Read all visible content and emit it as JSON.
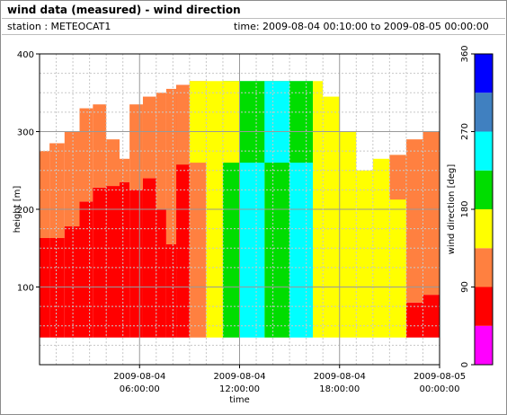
{
  "header": {
    "title": "wind data (measured) - wind direction",
    "station": "station : METEOCAT1",
    "time_range": "time: 2009-08-04 00:10:00 to 2009-08-05 00:00:00"
  },
  "chart_data": {
    "type": "heatmap",
    "title": "wind data (measured) - wind direction",
    "xlabel": "time",
    "ylabel": "height [m]",
    "colorbar_label": "wind direction [deg]",
    "xlim": [
      0,
      24
    ],
    "ylim": [
      0,
      400
    ],
    "x_ticks": [
      {
        "value": 6,
        "date": "2009-08-04",
        "time": "06:00:00"
      },
      {
        "value": 12,
        "date": "2009-08-04",
        "time": "12:00:00"
      },
      {
        "value": 18,
        "date": "2009-08-04",
        "time": "18:00:00"
      },
      {
        "value": 24,
        "date": "2009-08-05",
        "time": "00:00:00"
      }
    ],
    "y_ticks": [
      "100",
      "200",
      "300",
      "400"
    ],
    "colorbar": {
      "ticks": [
        "0",
        "90",
        "180",
        "270",
        "360"
      ],
      "bands": [
        {
          "from": 0,
          "to": 45,
          "color": "#ff00ff"
        },
        {
          "from": 45,
          "to": 90,
          "color": "#ff0000"
        },
        {
          "from": 90,
          "to": 135,
          "color": "#ff8040"
        },
        {
          "from": 135,
          "to": 180,
          "color": "#ffff00"
        },
        {
          "from": 180,
          "to": 225,
          "color": "#00dd00"
        },
        {
          "from": 225,
          "to": 270,
          "color": "#00ffff"
        },
        {
          "from": 270,
          "to": 315,
          "color": "#4080c0"
        },
        {
          "from": 315,
          "to": 360,
          "color": "#0000ff"
        }
      ]
    },
    "height_range_m": [
      35,
      365
    ],
    "data_bands": [
      {
        "t_start": 0.0,
        "t_end": 0.6,
        "top_m": 275,
        "low_m": 35,
        "low_top_m": 163,
        "low_class": "red",
        "upper_class": "orange"
      },
      {
        "t_start": 0.6,
        "t_end": 1.5,
        "top_m": 285,
        "low_m": 35,
        "low_top_m": 163,
        "low_class": "red",
        "upper_class": "orange"
      },
      {
        "t_start": 1.5,
        "t_end": 2.4,
        "top_m": 300,
        "low_m": 35,
        "low_top_m": 178,
        "low_class": "red",
        "upper_class": "orange"
      },
      {
        "t_start": 2.4,
        "t_end": 3.2,
        "top_m": 330,
        "low_m": 35,
        "low_top_m": 210,
        "low_class": "red",
        "upper_class": "orange"
      },
      {
        "t_start": 3.2,
        "t_end": 4.0,
        "top_m": 335,
        "low_m": 35,
        "low_top_m": 228,
        "low_class": "red",
        "upper_class": "orange"
      },
      {
        "t_start": 4.0,
        "t_end": 4.8,
        "top_m": 290,
        "low_m": 35,
        "low_top_m": 230,
        "low_class": "red",
        "upper_class": "orange"
      },
      {
        "t_start": 4.8,
        "t_end": 5.4,
        "top_m": 265,
        "low_m": 35,
        "low_top_m": 235,
        "low_class": "red",
        "upper_class": "orange"
      },
      {
        "t_start": 5.4,
        "t_end": 6.2,
        "top_m": 335,
        "low_m": 35,
        "low_top_m": 225,
        "low_class": "red",
        "upper_class": "orange"
      },
      {
        "t_start": 6.2,
        "t_end": 7.0,
        "top_m": 345,
        "low_m": 35,
        "low_top_m": 240,
        "low_class": "red",
        "upper_class": "orange"
      },
      {
        "t_start": 7.0,
        "t_end": 7.6,
        "top_m": 350,
        "low_m": 35,
        "low_top_m": 200,
        "low_class": "red",
        "upper_class": "orange"
      },
      {
        "t_start": 7.6,
        "t_end": 8.2,
        "top_m": 355,
        "low_m": 35,
        "low_top_m": 155,
        "low_class": "red",
        "upper_class": "orange"
      },
      {
        "t_start": 8.2,
        "t_end": 9.0,
        "top_m": 360,
        "low_m": 35,
        "low_top_m": 35,
        "low_class": "red",
        "upper_class": "orange"
      },
      {
        "t_start": 9.0,
        "t_end": 10.0,
        "top_m": 365,
        "low_m": 35,
        "low_top_m": 35,
        "low_class": "orange",
        "upper_class": "yellow"
      },
      {
        "t_start": 10.0,
        "t_end": 11.0,
        "top_m": 365,
        "low_m": 35,
        "low_top_m": 35,
        "low_class": "yellow",
        "upper_class": "yellow"
      },
      {
        "t_start": 11.0,
        "t_end": 12.0,
        "top_m": 365,
        "low_m": 35,
        "low_top_m": 35,
        "low_class": "green",
        "upper_class": "yellow"
      },
      {
        "t_start": 12.0,
        "t_end": 13.5,
        "top_m": 365,
        "low_m": 35,
        "low_top_m": 35,
        "low_class": "cyan",
        "upper_class": "green"
      },
      {
        "t_start": 13.5,
        "t_end": 15.0,
        "top_m": 365,
        "low_m": 35,
        "low_top_m": 35,
        "low_class": "green",
        "upper_class": "cyan"
      },
      {
        "t_start": 15.0,
        "t_end": 16.4,
        "top_m": 365,
        "low_m": 35,
        "low_top_m": 35,
        "low_class": "cyan",
        "upper_class": "green"
      },
      {
        "t_start": 16.4,
        "t_end": 17.0,
        "top_m": 365,
        "low_m": 35,
        "low_top_m": 35,
        "low_class": "yellow",
        "upper_class": "yellow"
      },
      {
        "t_start": 17.0,
        "t_end": 18.0,
        "top_m": 345,
        "low_m": 35,
        "low_top_m": 35,
        "low_class": "yellow",
        "upper_class": "yellow"
      },
      {
        "t_start": 18.0,
        "t_end": 19.0,
        "top_m": 300,
        "low_m": 35,
        "low_top_m": 35,
        "low_class": "yellow",
        "upper_class": "yellow"
      },
      {
        "t_start": 19.0,
        "t_end": 20.0,
        "top_m": 250,
        "low_m": 35,
        "low_top_m": 35,
        "low_class": "yellow",
        "upper_class": "yellow"
      },
      {
        "t_start": 20.0,
        "t_end": 21.0,
        "top_m": 265,
        "low_m": 35,
        "low_top_m": 35,
        "low_class": "yellow",
        "upper_class": "yellow"
      },
      {
        "t_start": 21.0,
        "t_end": 22.0,
        "top_m": 270,
        "low_m": 35,
        "low_top_m": 35,
        "low_class": "yellow",
        "upper_class": "orange"
      },
      {
        "t_start": 22.0,
        "t_end": 23.0,
        "top_m": 290,
        "low_m": 35,
        "low_top_m": 80,
        "low_class": "red",
        "upper_class": "orange"
      },
      {
        "t_start": 23.0,
        "t_end": 24.0,
        "top_m": 300,
        "low_m": 35,
        "low_top_m": 90,
        "low_class": "red",
        "upper_class": "orange"
      }
    ],
    "grid": true,
    "legend_position": "right"
  }
}
